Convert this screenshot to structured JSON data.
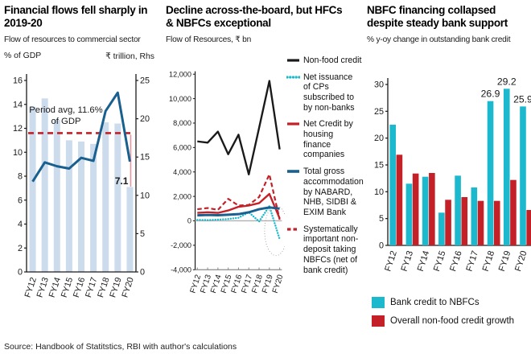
{
  "source": "Source: Handbook of Statitstics, RBI with author's calculations",
  "colors": {
    "teal": "#1cb8cd",
    "crimson": "#c32127",
    "light_blue_bar": "#ccdcec",
    "dark_blue_line": "#19608f",
    "black": "#1a1a1a",
    "pink_drop_line": "#e8959e",
    "gray_axis": "#8a8a8a"
  },
  "chart_data": [
    {
      "type": "bar",
      "title": "Financial flows fell sharply in 2019-20",
      "subtitle": "Flow of resources to commercial sector",
      "left_axis_label": "% of GDP",
      "right_axis_label": "₹ trillion, Rhs",
      "categories": [
        "FY12",
        "FY13",
        "FY14",
        "FY15",
        "FY16",
        "FY17",
        "FY18",
        "FY19",
        "FY20"
      ],
      "series": [
        {
          "name": "Flow of resources (% of GDP)",
          "render": "bar",
          "axis": "left",
          "color": "#ccdcec",
          "values": [
            13.8,
            14.5,
            12.7,
            11.0,
            10.9,
            10.7,
            12.5,
            12.4,
            7.1
          ]
        },
        {
          "name": "Flow of resources (₹ trillion)",
          "render": "line",
          "axis": "right",
          "color": "#19608f",
          "values": [
            11.8,
            14.3,
            13.8,
            13.5,
            14.9,
            14.5,
            21.0,
            23.4,
            14.4
          ]
        }
      ],
      "average_line": {
        "value": 11.6,
        "label_lines": [
          "Period avg, 11.6%",
          "of GDP"
        ],
        "color": "#c32127"
      },
      "last_bar_label": "7.1",
      "left_ylim": [
        0,
        16
      ],
      "right_ylim": [
        0,
        25
      ],
      "left_ticks": [
        0,
        2,
        4,
        6,
        8,
        10,
        12,
        14,
        16
      ],
      "right_ticks": [
        0,
        5,
        10,
        15,
        20,
        25
      ],
      "grid": "off",
      "legend_position": "none"
    },
    {
      "type": "line",
      "title": "Decline across-the-board, but HFCs & NBFCs  exceptional",
      "subtitle": "Flow of Resources, ₹ bn",
      "categories": [
        "FY12",
        "FY13",
        "FY14",
        "FY15",
        "FY16",
        "FY17",
        "FY18",
        "FY19",
        "FY20"
      ],
      "ylim": [
        -4000,
        12000
      ],
      "yticks": [
        12000,
        10000,
        8000,
        6000,
        4000,
        2000,
        0,
        -2000,
        -4000
      ],
      "series": [
        {
          "name": "Non-food credit",
          "style": "solid",
          "color": "#1a1a1a",
          "width": 2.6,
          "values": [
            6500,
            6400,
            7300,
            5450,
            7050,
            3800,
            7600,
            11450,
            5850
          ]
        },
        {
          "name": "Net issuance of CPs subscribed to by non-banks",
          "style": "dotted",
          "color": "#1cb8cd",
          "width": 2.6,
          "values": [
            80,
            60,
            100,
            150,
            250,
            700,
            -50,
            1200,
            -1500
          ]
        },
        {
          "name": "Net Credit  by housing finance companies",
          "style": "solid",
          "color": "#c32127",
          "width": 2.6,
          "values": [
            650,
            700,
            650,
            850,
            1150,
            1250,
            1450,
            2200,
            200
          ]
        },
        {
          "name": "Total gross accommodation by NABARD, NHB, SIDBI & EXIM Bank",
          "style": "solid",
          "color": "#19608f",
          "width": 3.2,
          "values": [
            450,
            480,
            460,
            500,
            550,
            700,
            950,
            1100,
            1000
          ]
        },
        {
          "name": "Systematically important non-deposit taking NBFCs (net of bank credit)",
          "style": "dashed",
          "color": "#c32127",
          "width": 2.4,
          "values": [
            950,
            1050,
            900,
            1800,
            1250,
            1300,
            1950,
            3800,
            100
          ]
        }
      ],
      "highlight_ellipse": {
        "center_category_index": 7.5,
        "center_value": -800,
        "note": "dotted ellipse highlighting FY19-FY20 CP swing"
      },
      "grid": "zero-line-only",
      "legend_position": "right"
    },
    {
      "type": "bar",
      "title": "NBFC financing collapsed despite steady bank support",
      "subtitle": "% y-oy change in outstanding bank credit",
      "categories": [
        "FY12",
        "FY13",
        "FY14",
        "FY15",
        "FY16",
        "FY17",
        "FY18",
        "FY19",
        "FY20"
      ],
      "series": [
        {
          "name": "Bank credit to NBFCs",
          "color": "#1cb8cd",
          "values": [
            22.5,
            11.5,
            12.8,
            6.1,
            13.0,
            10.8,
            26.9,
            29.2,
            25.9
          ]
        },
        {
          "name": "Overall non-food credit growth",
          "color": "#c32127",
          "values": [
            16.9,
            13.4,
            13.5,
            8.5,
            9.0,
            8.3,
            8.3,
            12.2,
            6.6
          ]
        }
      ],
      "bar_labels": [
        {
          "series": 0,
          "index": 6,
          "text": "26.9"
        },
        {
          "series": 0,
          "index": 7,
          "text": "29.2"
        },
        {
          "series": 0,
          "index": 8,
          "text": "25.9"
        }
      ],
      "ylim": [
        0,
        30
      ],
      "yticks": [
        0,
        5,
        10,
        15,
        20,
        25,
        30
      ],
      "grid": "off",
      "legend_position": "bottom"
    }
  ]
}
